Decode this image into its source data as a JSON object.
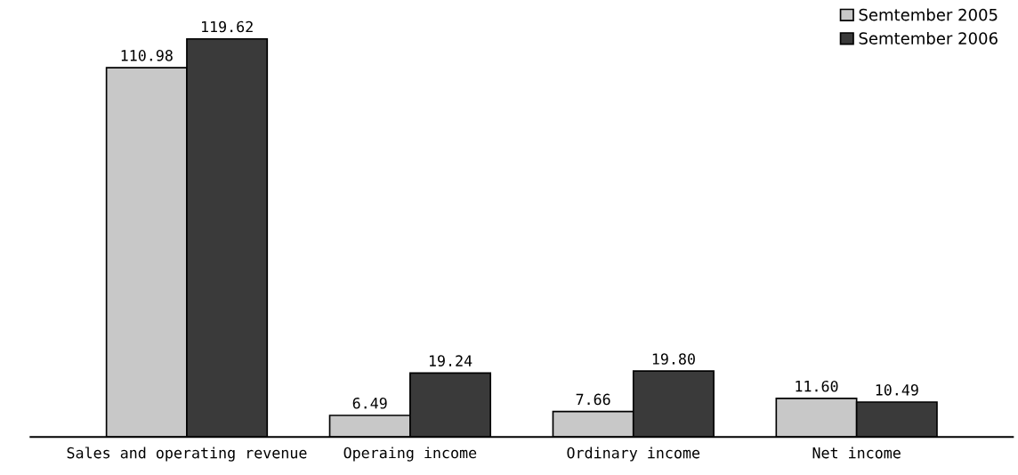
{
  "chart_data": {
    "type": "bar",
    "categories": [
      "Sales and operating revenue",
      "Operaing income",
      "Ordinary income",
      "Net income"
    ],
    "series": [
      {
        "name": "Semtember 2005",
        "color": "#c8c8c8",
        "values": [
          110.98,
          6.49,
          7.66,
          11.6
        ],
        "value_labels": [
          "110.98",
          "6.49",
          "7.66",
          "11.60"
        ]
      },
      {
        "name": "Semtember 2006",
        "color": "#3a3a3a",
        "values": [
          119.62,
          19.24,
          19.8,
          10.49
        ],
        "value_labels": [
          "119.62",
          "19.24",
          "19.80",
          "10.49"
        ]
      }
    ],
    "tick_labels": "x",
    "legend": "top right",
    "grid": false
  }
}
